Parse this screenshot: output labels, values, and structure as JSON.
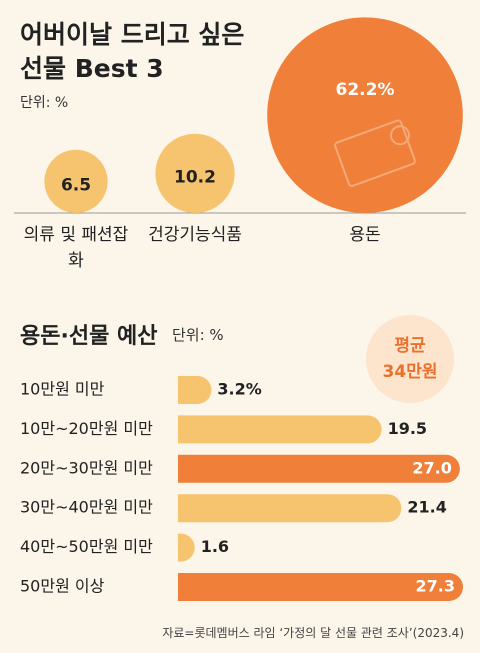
{
  "chart_data": [
    {
      "type": "bubble",
      "title": "어버이날 드리고 싶은 선물 Best 3",
      "unit": "단위: %",
      "categories": [
        "의류 및 패션잡화",
        "건강기능식품",
        "용돈"
      ],
      "values": [
        6.5,
        10.2,
        62.2
      ],
      "value_labels": [
        "6.5",
        "10.2",
        "62.2%"
      ],
      "colors": [
        "#f6c46f",
        "#f6c46f",
        "#f07f3a"
      ]
    },
    {
      "type": "hbar",
      "title": "용돈·선물 예산",
      "unit": "단위: %",
      "annotation": [
        "평균",
        "34만원"
      ],
      "categories": [
        "10만원 미만",
        "10만~20만원 미만",
        "20만~30만원 미만",
        "30만~40만원 미만",
        "40만~50만원 미만",
        "50만원 이상"
      ],
      "values": [
        3.2,
        19.5,
        27.0,
        21.4,
        1.6,
        27.3
      ],
      "value_labels": [
        "3.2%",
        "19.5",
        "27.0",
        "21.4",
        "1.6",
        "27.3"
      ],
      "colors": [
        "#f6c46f",
        "#f6c46f",
        "#f07f3a",
        "#f6c46f",
        "#f6c46f",
        "#f07f3a"
      ],
      "xlim": [
        0,
        27.3
      ]
    }
  ],
  "source": "자료=롯데멤버스 라임 ‘가정의 달 선물 관련 조사’(2023.4)"
}
